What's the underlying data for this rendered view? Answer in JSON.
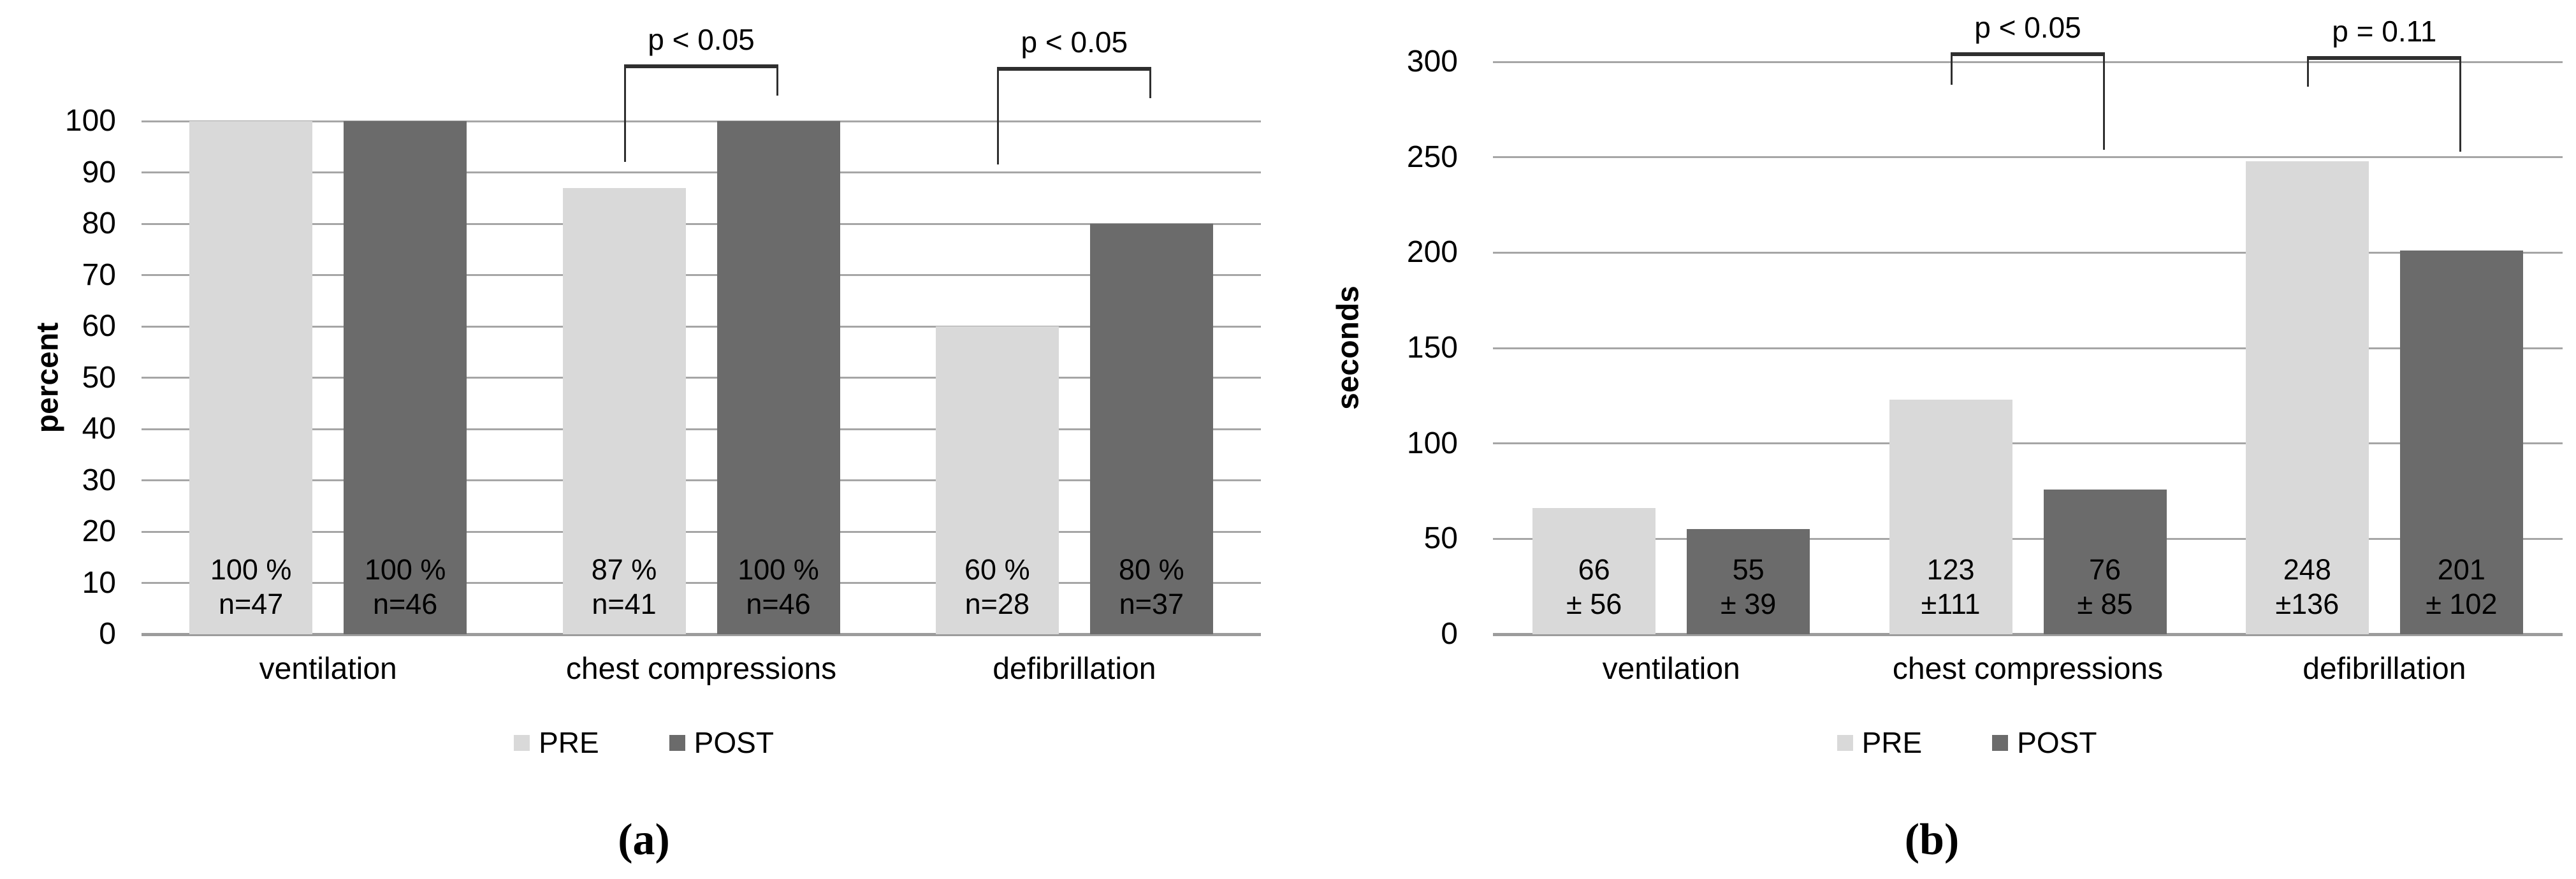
{
  "figure": {
    "background": "#ffffff",
    "caption_a": "(a)",
    "caption_b": "(b)"
  },
  "colors": {
    "pre_series": "#d9d9d9",
    "post_series": "#6b6b6b",
    "gridline": "#a6a6a6",
    "axis_baseline": "#9c9c9c",
    "bracket_line": "#2f2f2f",
    "text": "#000000"
  },
  "chart_data": [
    {
      "type": "bar",
      "panel": "a",
      "caption": "(a)",
      "ylabel": "percent",
      "ylim": [
        0,
        100
      ],
      "ytick_step": 10,
      "ytick_labels": [
        "0",
        "10",
        "20",
        "30",
        "40",
        "50",
        "60",
        "70",
        "80",
        "90",
        "100"
      ],
      "grid": true,
      "legend_position": "bottom",
      "legend": [
        "PRE",
        "POST"
      ],
      "categories": [
        "ventilation",
        "chest compressions",
        "defibrillation"
      ],
      "series": [
        {
          "name": "PRE",
          "color": "#d9d9d9",
          "values": [
            100,
            87,
            60
          ],
          "bar_labels": [
            [
              "100 %",
              "n=47"
            ],
            [
              "87 %",
              "n=41"
            ],
            [
              "60 %",
              "n=28"
            ]
          ]
        },
        {
          "name": "POST",
          "color": "#6b6b6b",
          "values": [
            100,
            100,
            80
          ],
          "bar_labels": [
            [
              "100 %",
              "n=46"
            ],
            [
              "100 %",
              "n=46"
            ],
            [
              "80 %",
              "n=37"
            ]
          ]
        }
      ],
      "significance_brackets": [
        {
          "label": "p < 0.05",
          "category_index": 1,
          "top_value": 111,
          "left_end_value": 92,
          "right_end_value": 105
        },
        {
          "label": "p < 0.05",
          "category_index": 2,
          "top_value": 110.5,
          "left_end_value": 91.5,
          "right_end_value": 104.5
        }
      ]
    },
    {
      "type": "bar",
      "panel": "b",
      "caption": "(b)",
      "ylabel": "seconds",
      "ylim": [
        0,
        300
      ],
      "ytick_step": 50,
      "ytick_labels": [
        "0",
        "50",
        "100",
        "150",
        "200",
        "250",
        "300"
      ],
      "grid": true,
      "legend_position": "bottom",
      "legend": [
        "PRE",
        "POST"
      ],
      "categories": [
        "ventilation",
        "chest compressions",
        "defibrillation"
      ],
      "series": [
        {
          "name": "PRE",
          "color": "#d9d9d9",
          "values": [
            66,
            123,
            248
          ],
          "bar_labels": [
            [
              "66",
              "± 56"
            ],
            [
              "123",
              "±111"
            ],
            [
              "248",
              "±136"
            ]
          ]
        },
        {
          "name": "POST",
          "color": "#6b6b6b",
          "values": [
            55,
            76,
            201
          ],
          "bar_labels": [
            [
              "55",
              "± 39"
            ],
            [
              "76",
              "± 85"
            ],
            [
              "201",
              "± 102"
            ]
          ]
        }
      ],
      "significance_brackets": [
        {
          "label": "p < 0.05",
          "category_index": 1,
          "top_value": 305,
          "left_end_value": 288,
          "right_end_value": 254
        },
        {
          "label": "p = 0.11",
          "category_index": 2,
          "top_value": 303,
          "left_end_value": 287,
          "right_end_value": 253
        }
      ]
    }
  ]
}
